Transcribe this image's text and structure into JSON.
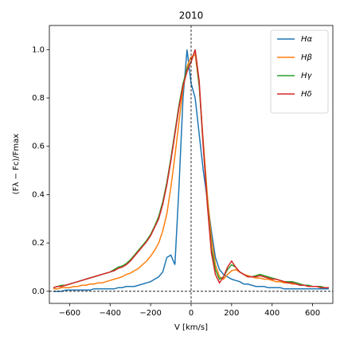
{
  "chart_data": {
    "type": "line",
    "title": "2010",
    "x_label": "V [km/s]",
    "y_label": "(Fλ − Fc)/Fmax",
    "xlim": [
      -700,
      700
    ],
    "ylim": [
      -0.05,
      1.1
    ],
    "xticks": [
      {
        "value": -600,
        "label": "−600"
      },
      {
        "value": -400,
        "label": "−400"
      },
      {
        "value": -200,
        "label": "−200"
      },
      0,
      200,
      400,
      600
    ],
    "yticks": [
      {
        "value": 0,
        "label": "0.0"
      },
      0.2,
      0.4,
      0.6,
      0.8,
      {
        "value": 1,
        "label": "1.0"
      }
    ],
    "vline": 0,
    "hline": 0,
    "legend": "upper right",
    "x": [
      -680,
      -660,
      -640,
      -620,
      -600,
      -580,
      -560,
      -540,
      -520,
      -500,
      -480,
      -460,
      -440,
      -420,
      -400,
      -380,
      -360,
      -340,
      -320,
      -300,
      -280,
      -260,
      -240,
      -220,
      -200,
      -180,
      -160,
      -140,
      -120,
      -100,
      -80,
      -60,
      -40,
      -20,
      0,
      20,
      40,
      60,
      80,
      100,
      120,
      140,
      160,
      180,
      200,
      220,
      240,
      260,
      280,
      300,
      320,
      340,
      360,
      380,
      400,
      420,
      440,
      460,
      480,
      500,
      520,
      540,
      560,
      580,
      600,
      620,
      640,
      660,
      680
    ],
    "series": [
      {
        "name": "Hα",
        "color": "#1f77b4",
        "values": [
          0,
          0,
          0,
          0.005,
          0.005,
          0.005,
          0.005,
          0.005,
          0.005,
          0.005,
          0.01,
          0.01,
          0.01,
          0.01,
          0.01,
          0.01,
          0.015,
          0.015,
          0.02,
          0.02,
          0.02,
          0.025,
          0.03,
          0.035,
          0.04,
          0.05,
          0.06,
          0.08,
          0.14,
          0.15,
          0.11,
          0.43,
          0.8,
          1.0,
          0.86,
          0.8,
          0.65,
          0.5,
          0.38,
          0.25,
          0.14,
          0.09,
          0.07,
          0.06,
          0.05,
          0.045,
          0.04,
          0.03,
          0.03,
          0.025,
          0.02,
          0.02,
          0.02,
          0.015,
          0.015,
          0.015,
          0.015,
          0.01,
          0.01,
          0.01,
          0.01,
          0.01,
          0.01,
          0.01,
          0.01,
          0.01,
          0.01,
          0.01,
          0.01
        ]
      },
      {
        "name": "Hβ",
        "color": "#ff7f0e",
        "values": [
          0.01,
          0.01,
          0.015,
          0.015,
          0.015,
          0.02,
          0.02,
          0.025,
          0.025,
          0.03,
          0.03,
          0.035,
          0.035,
          0.04,
          0.045,
          0.05,
          0.055,
          0.06,
          0.07,
          0.075,
          0.085,
          0.095,
          0.11,
          0.125,
          0.145,
          0.17,
          0.2,
          0.25,
          0.32,
          0.43,
          0.56,
          0.7,
          0.84,
          0.93,
          0.97,
          0.98,
          0.85,
          0.62,
          0.4,
          0.22,
          0.11,
          0.06,
          0.05,
          0.07,
          0.085,
          0.09,
          0.08,
          0.07,
          0.065,
          0.06,
          0.055,
          0.055,
          0.05,
          0.05,
          0.045,
          0.04,
          0.04,
          0.035,
          0.035,
          0.03,
          0.03,
          0.025,
          0.025,
          0.02,
          0.02,
          0.02,
          0.015,
          0.015,
          0.015
        ]
      },
      {
        "name": "Hγ",
        "color": "#2ca02c",
        "values": [
          0.015,
          0.02,
          0.025,
          0.025,
          0.03,
          0.035,
          0.04,
          0.045,
          0.05,
          0.055,
          0.06,
          0.065,
          0.07,
          0.075,
          0.08,
          0.09,
          0.1,
          0.105,
          0.115,
          0.13,
          0.15,
          0.17,
          0.19,
          0.21,
          0.235,
          0.27,
          0.31,
          0.37,
          0.45,
          0.55,
          0.66,
          0.77,
          0.86,
          0.92,
          0.95,
          1.0,
          0.85,
          0.6,
          0.37,
          0.18,
          0.09,
          0.05,
          0.06,
          0.09,
          0.11,
          0.1,
          0.08,
          0.07,
          0.06,
          0.06,
          0.065,
          0.07,
          0.065,
          0.06,
          0.055,
          0.05,
          0.045,
          0.04,
          0.04,
          0.04,
          0.035,
          0.03,
          0.025,
          0.025,
          0.02,
          0.02,
          0.02,
          0.015,
          0.015
        ]
      },
      {
        "name": "Hδ",
        "color": "#d62728",
        "values": [
          0.015,
          0.02,
          0.02,
          0.025,
          0.03,
          0.035,
          0.04,
          0.045,
          0.05,
          0.055,
          0.06,
          0.065,
          0.07,
          0.075,
          0.08,
          0.085,
          0.095,
          0.1,
          0.11,
          0.125,
          0.145,
          0.165,
          0.185,
          0.205,
          0.23,
          0.265,
          0.3,
          0.36,
          0.44,
          0.54,
          0.65,
          0.76,
          0.85,
          0.91,
          0.95,
          1.0,
          0.87,
          0.6,
          0.36,
          0.16,
          0.07,
          0.035,
          0.06,
          0.1,
          0.125,
          0.1,
          0.08,
          0.07,
          0.06,
          0.06,
          0.06,
          0.065,
          0.06,
          0.055,
          0.05,
          0.05,
          0.045,
          0.04,
          0.035,
          0.035,
          0.03,
          0.025,
          0.025,
          0.02,
          0.02,
          0.02,
          0.015,
          0.015,
          0.015
        ]
      }
    ]
  }
}
